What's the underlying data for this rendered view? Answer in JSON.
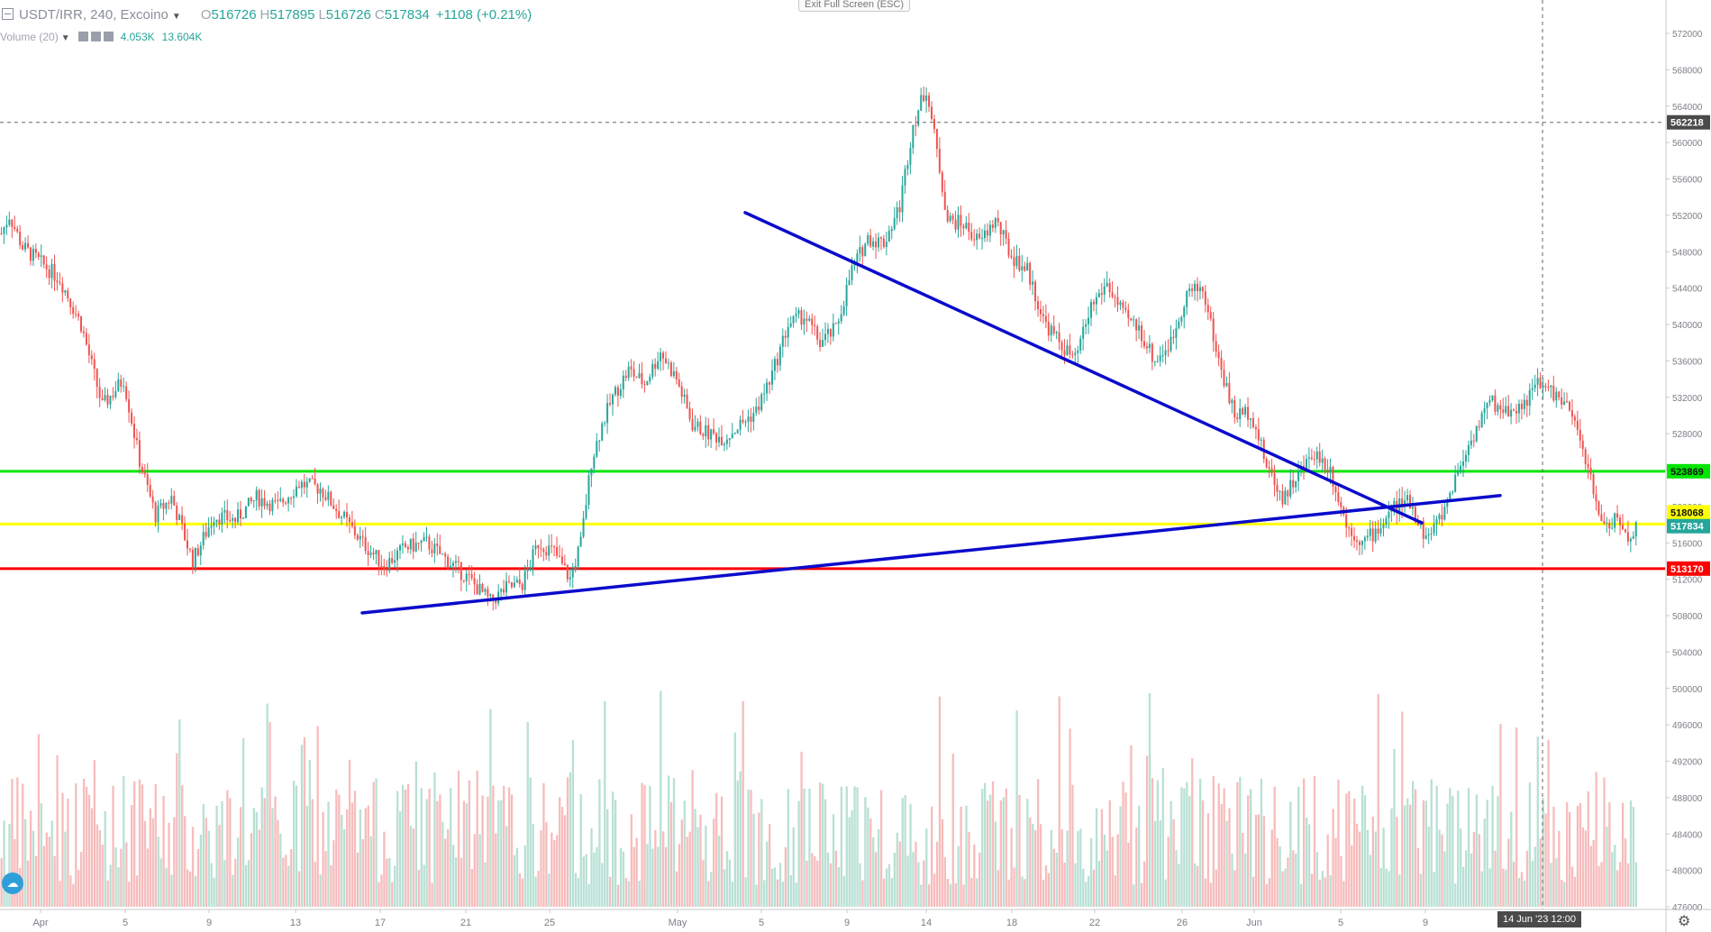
{
  "legend": {
    "symbol": "USDT/IRR, 240, Excoino",
    "o_label": "O",
    "o_value": "516726",
    "h_label": "H",
    "h_value": "517895",
    "l_label": "L",
    "l_value": "516726",
    "c_label": "C",
    "c_value": "517834",
    "change": "+1108 (+0.21%)"
  },
  "volume_legend": {
    "name": "Volume (20)",
    "value1": "4.053K",
    "value2": "13.604K"
  },
  "exit_fullscreen": "Exit Full Screen (ESC)",
  "date_cursor": "14 Jun '23   12:00",
  "icons": [
    "collapse-icon",
    "chevron-down-icon",
    "tradingview-logo-icon",
    "settings-gear-icon"
  ],
  "chart_data": {
    "type": "candlestick",
    "symbol": "USDT/IRR",
    "interval": "240",
    "exchange": "Excoino",
    "ylim": [
      476000,
      574000
    ],
    "y_ticks": [
      476000,
      480000,
      484000,
      488000,
      492000,
      496000,
      500000,
      504000,
      508000,
      512000,
      516000,
      520000,
      524000,
      528000,
      532000,
      536000,
      540000,
      544000,
      548000,
      552000,
      556000,
      560000,
      564000,
      568000,
      572000
    ],
    "x_ticks": [
      "Apr",
      "5",
      "9",
      "13",
      "17",
      "21",
      "25",
      "May",
      "5",
      "9",
      "14",
      "18",
      "22",
      "26",
      "Jun",
      "5",
      "9"
    ],
    "price_labels": [
      {
        "value": "562218",
        "color": "#4a4a4a"
      },
      {
        "value": "523869",
        "color": "#00e600"
      },
      {
        "value": "518068",
        "color": "#ffff00"
      },
      {
        "value": "517834",
        "color": "#26a69a"
      },
      {
        "value": "513170",
        "color": "#ff0000"
      }
    ],
    "horizontal_lines": [
      {
        "value": 523869,
        "color": "#00e600"
      },
      {
        "value": 518068,
        "color": "#ffff00"
      },
      {
        "value": 513170,
        "color": "#ff0000"
      }
    ],
    "crosshair_price": 562218,
    "colors": {
      "up": "#26a69a",
      "down": "#ef5350",
      "vol_up": "#b8e0d4",
      "vol_down": "#f7bcbc",
      "trendline": "#0b0bcc"
    },
    "trendlines": [
      {
        "from": [
          "May 3",
          552300
        ],
        "to": [
          "Jun 9",
          518200
        ]
      },
      {
        "from": [
          "Apr 15",
          508300
        ],
        "to": [
          "Jun 12",
          521200
        ]
      }
    ],
    "close_path": [
      [
        0,
        550000
      ],
      [
        3,
        552000
      ],
      [
        8,
        548500
      ],
      [
        14,
        547000
      ],
      [
        22,
        545000
      ],
      [
        30,
        540000
      ],
      [
        38,
        531000
      ],
      [
        46,
        534000
      ],
      [
        52,
        525000
      ],
      [
        58,
        519000
      ],
      [
        64,
        521000
      ],
      [
        72,
        514000
      ],
      [
        80,
        519000
      ],
      [
        88,
        518500
      ],
      [
        96,
        521000
      ],
      [
        104,
        520000
      ],
      [
        112,
        522500
      ],
      [
        120,
        522000
      ],
      [
        128,
        519000
      ],
      [
        136,
        516000
      ],
      [
        144,
        513500
      ],
      [
        152,
        515500
      ],
      [
        160,
        516000
      ],
      [
        168,
        514000
      ],
      [
        176,
        512000
      ],
      [
        184,
        509500
      ],
      [
        190,
        511000
      ],
      [
        196,
        511500
      ],
      [
        202,
        516000
      ],
      [
        208,
        515000
      ],
      [
        214,
        512000
      ],
      [
        218,
        516000
      ],
      [
        222,
        525000
      ],
      [
        226,
        529000
      ],
      [
        230,
        532000
      ],
      [
        236,
        535000
      ],
      [
        242,
        533500
      ],
      [
        248,
        537000
      ],
      [
        254,
        534000
      ],
      [
        260,
        529000
      ],
      [
        266,
        528000
      ],
      [
        272,
        527500
      ],
      [
        278,
        529000
      ],
      [
        284,
        530500
      ],
      [
        290,
        534500
      ],
      [
        296,
        540000
      ],
      [
        302,
        541000
      ],
      [
        308,
        538000
      ],
      [
        314,
        539500
      ],
      [
        320,
        546000
      ],
      [
        326,
        549500
      ],
      [
        332,
        549000
      ],
      [
        338,
        553000
      ],
      [
        343,
        562000
      ],
      [
        348,
        566000
      ],
      [
        352,
        559000
      ],
      [
        356,
        551500
      ],
      [
        362,
        551000
      ],
      [
        368,
        549000
      ],
      [
        374,
        551500
      ],
      [
        380,
        547500
      ],
      [
        386,
        546000
      ],
      [
        392,
        540500
      ],
      [
        398,
        538000
      ],
      [
        404,
        536000
      ],
      [
        410,
        542000
      ],
      [
        416,
        544500
      ],
      [
        422,
        541000
      ],
      [
        428,
        539500
      ],
      [
        434,
        536000
      ],
      [
        440,
        538000
      ],
      [
        446,
        543500
      ],
      [
        452,
        544000
      ],
      [
        458,
        536000
      ],
      [
        464,
        530000
      ],
      [
        470,
        530500
      ],
      [
        476,
        524500
      ],
      [
        482,
        521000
      ],
      [
        488,
        523500
      ],
      [
        494,
        526000
      ],
      [
        500,
        524000
      ],
      [
        506,
        518000
      ],
      [
        512,
        516000
      ],
      [
        518,
        517500
      ],
      [
        524,
        520000
      ],
      [
        530,
        520500
      ],
      [
        536,
        516500
      ],
      [
        542,
        519000
      ],
      [
        548,
        524000
      ],
      [
        554,
        528000
      ],
      [
        560,
        531500
      ],
      [
        566,
        530500
      ],
      [
        572,
        531000
      ],
      [
        578,
        533500
      ],
      [
        584,
        532500
      ],
      [
        590,
        530500
      ],
      [
        596,
        525500
      ],
      [
        600,
        520000
      ],
      [
        604,
        518000
      ],
      [
        608,
        518500
      ],
      [
        612,
        516500
      ],
      [
        615,
        517834
      ]
    ],
    "volume_base": 476000
  }
}
